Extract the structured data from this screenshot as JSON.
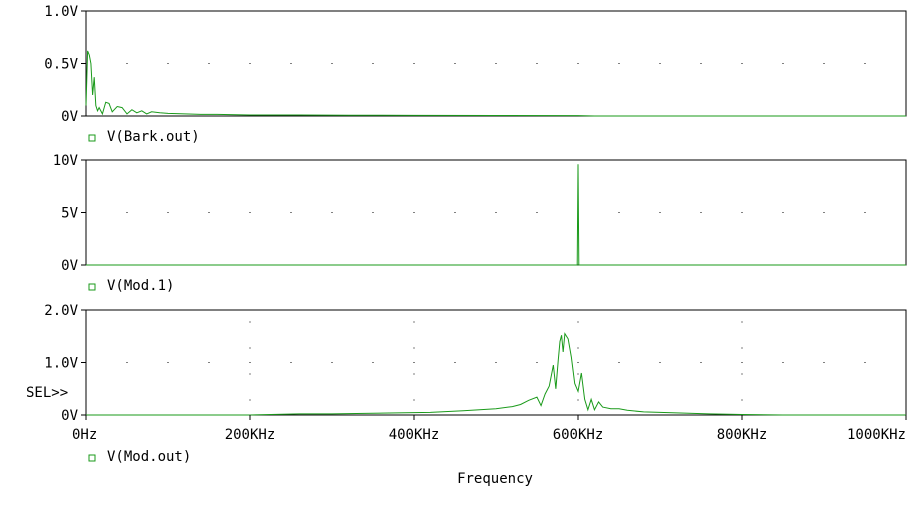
{
  "colors": {
    "trace": "#1a9a1a",
    "frame": "#000000",
    "background": "#ffffff"
  },
  "selector_label": "SEL>>",
  "xaxis": {
    "label": "Frequency",
    "ticks": [
      "0Hz",
      "200KHz",
      "400KHz",
      "600KHz",
      "800KHz",
      "1000KHz"
    ],
    "xlim": [
      0,
      1000
    ]
  },
  "chart_data": [
    {
      "type": "line",
      "title": "",
      "legend": "V(Bark.out)",
      "y_ticks": [
        "0V",
        "0.5V",
        "1.0V"
      ],
      "ylim": [
        0,
        1.0
      ],
      "x_unit": "KHz",
      "series": [
        {
          "name": "V(Bark.out)",
          "x": [
            0,
            2,
            4,
            6,
            8,
            10,
            12,
            14,
            16,
            20,
            24,
            28,
            32,
            38,
            44,
            50,
            56,
            62,
            68,
            74,
            80,
            90,
            100,
            120,
            140,
            160,
            200,
            260,
            320,
            400,
            500,
            600,
            620,
            700,
            800,
            1000
          ],
          "values": [
            0.1,
            0.62,
            0.58,
            0.5,
            0.2,
            0.37,
            0.1,
            0.05,
            0.08,
            0.02,
            0.13,
            0.12,
            0.04,
            0.09,
            0.08,
            0.02,
            0.06,
            0.03,
            0.05,
            0.02,
            0.04,
            0.03,
            0.025,
            0.02,
            0.015,
            0.015,
            0.01,
            0.01,
            0.008,
            0.006,
            0.005,
            0.004,
            0.0,
            0.0,
            0.0,
            0.0
          ]
        }
      ]
    },
    {
      "type": "line",
      "title": "",
      "legend": "V(Mod.1)",
      "y_ticks": [
        "0V",
        "5V",
        "10V"
      ],
      "ylim": [
        0,
        10
      ],
      "x_unit": "KHz",
      "series": [
        {
          "name": "V(Mod.1)",
          "x": [
            0,
            597,
            599,
            600,
            601,
            603,
            1000
          ],
          "values": [
            0,
            0,
            0,
            9.6,
            0,
            0,
            0
          ]
        }
      ]
    },
    {
      "type": "line",
      "title": "",
      "legend": "V(Mod.out)",
      "y_ticks": [
        "0V",
        "1.0V",
        "2.0V"
      ],
      "ylim": [
        0,
        2.0
      ],
      "x_unit": "KHz",
      "series": [
        {
          "name": "V(Mod.out)",
          "x": [
            0,
            200,
            260,
            300,
            340,
            380,
            420,
            460,
            480,
            500,
            520,
            530,
            540,
            550,
            555,
            560,
            565,
            570,
            573,
            576,
            578,
            580,
            582,
            584,
            588,
            592,
            596,
            600,
            604,
            608,
            612,
            616,
            620,
            625,
            630,
            640,
            650,
            660,
            680,
            700,
            720,
            740,
            760,
            800,
            850,
            900,
            950,
            1000
          ],
          "values": [
            0.0,
            0.0,
            0.02,
            0.02,
            0.03,
            0.04,
            0.05,
            0.08,
            0.1,
            0.12,
            0.16,
            0.2,
            0.28,
            0.34,
            0.18,
            0.4,
            0.55,
            0.95,
            0.5,
            1.05,
            1.4,
            1.52,
            1.2,
            1.55,
            1.45,
            1.1,
            0.6,
            0.45,
            0.8,
            0.3,
            0.1,
            0.3,
            0.1,
            0.25,
            0.15,
            0.12,
            0.12,
            0.09,
            0.06,
            0.05,
            0.04,
            0.03,
            0.02,
            0.01,
            0.0,
            0.0,
            0.0,
            0.0
          ]
        }
      ]
    }
  ]
}
